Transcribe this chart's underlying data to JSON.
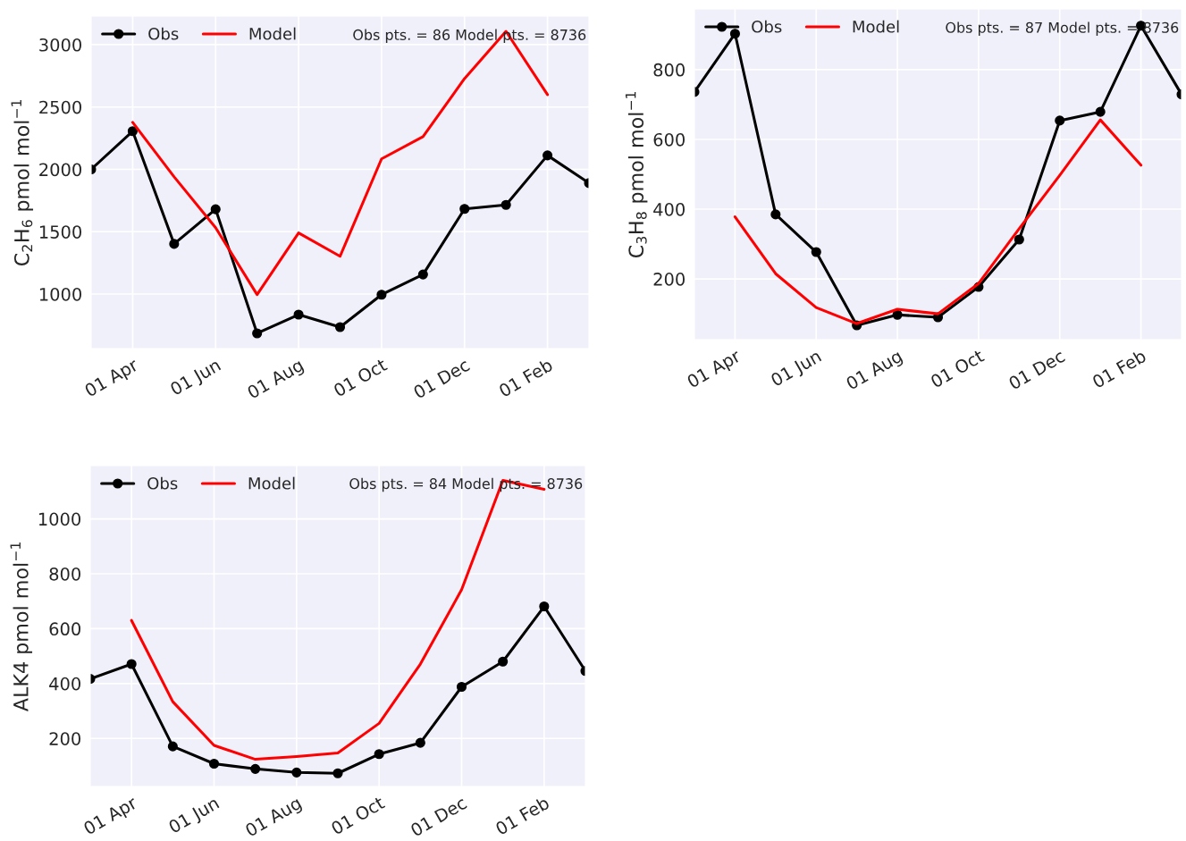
{
  "chart_data": [
    {
      "type": "line",
      "ylabel": "C$_{2}$H$_{6}$ pmol mol$^{−1}$",
      "annotations": [
        "Obs pts. = 86 Model pts. = 8736"
      ],
      "categories": [
        null,
        "01 Apr",
        null,
        "01 Jun",
        null,
        "01 Aug",
        null,
        "01 Oct",
        null,
        "01 Dec",
        null,
        "01 Feb",
        null
      ],
      "series": [
        {
          "name": "Obs",
          "color": "#000000",
          "marker": "circle",
          "values": [
            2000,
            2306,
            1402,
            1680,
            685,
            835,
            735,
            995,
            1157,
            1683,
            1715,
            2112,
            1890
          ]
        },
        {
          "name": "Model",
          "color": "#ff0000",
          "marker": "none",
          "values": [
            null,
            2377,
            1940,
            1532,
            996,
            1490,
            1303,
            2084,
            2263,
            2728,
            3107,
            2599,
            null
          ]
        }
      ],
      "ylim": [
        563,
        3229
      ],
      "yticks": [
        1000,
        1500,
        2000,
        2500,
        3000
      ],
      "grid": true,
      "legend": "top left",
      "line_style": "solid"
    },
    {
      "type": "line",
      "ylabel": "C$_{3}$H$_{8}$ pmol mol$^{−1}$",
      "annotations": [
        "Obs pts. = 87 Model pts. = 8736"
      ],
      "categories": [
        null,
        "01 Apr",
        null,
        "01 Jun",
        null,
        "01 Aug",
        null,
        "01 Oct",
        null,
        "01 Dec",
        null,
        "01 Feb",
        null
      ],
      "series": [
        {
          "name": "Obs",
          "color": "#000000",
          "marker": "circle",
          "values": [
            736,
            903,
            385,
            277,
            67,
            97,
            90,
            177,
            313,
            654,
            679,
            926,
            729
          ]
        },
        {
          "name": "Model",
          "color": "#ff0000",
          "marker": "none",
          "values": [
            null,
            378,
            215,
            118,
            72,
            113,
            100,
            187,
            344,
            497,
            656,
            526,
            null
          ]
        }
      ],
      "ylim": [
        26,
        974
      ],
      "yticks": [
        200,
        400,
        600,
        800
      ],
      "grid": true,
      "legend": "top left",
      "line_style": "solid"
    },
    {
      "type": "line",
      "ylabel": "ALK4 pmol mol$^{−1}$",
      "annotations": [
        "Obs pts. = 84 Model pts. = 8736"
      ],
      "categories": [
        null,
        "01 Apr",
        null,
        "01 Jun",
        null,
        "01 Aug",
        null,
        "01 Oct",
        null,
        "01 Dec",
        null,
        "01 Feb",
        null
      ],
      "series": [
        {
          "name": "Obs",
          "color": "#000000",
          "marker": "circle",
          "values": [
            417,
            471,
            171,
            108,
            89,
            76,
            73,
            143,
            184,
            388,
            480,
            681,
            446
          ]
        },
        {
          "name": "Model",
          "color": "#ff0000",
          "marker": "none",
          "values": [
            null,
            630,
            334,
            175,
            124,
            134,
            147,
            255,
            471,
            742,
            1140,
            1108,
            null
          ]
        }
      ],
      "ylim": [
        25,
        1194
      ],
      "yticks": [
        200,
        400,
        600,
        800,
        1000
      ],
      "grid": true,
      "legend": "top left",
      "line_style": "solid"
    }
  ]
}
